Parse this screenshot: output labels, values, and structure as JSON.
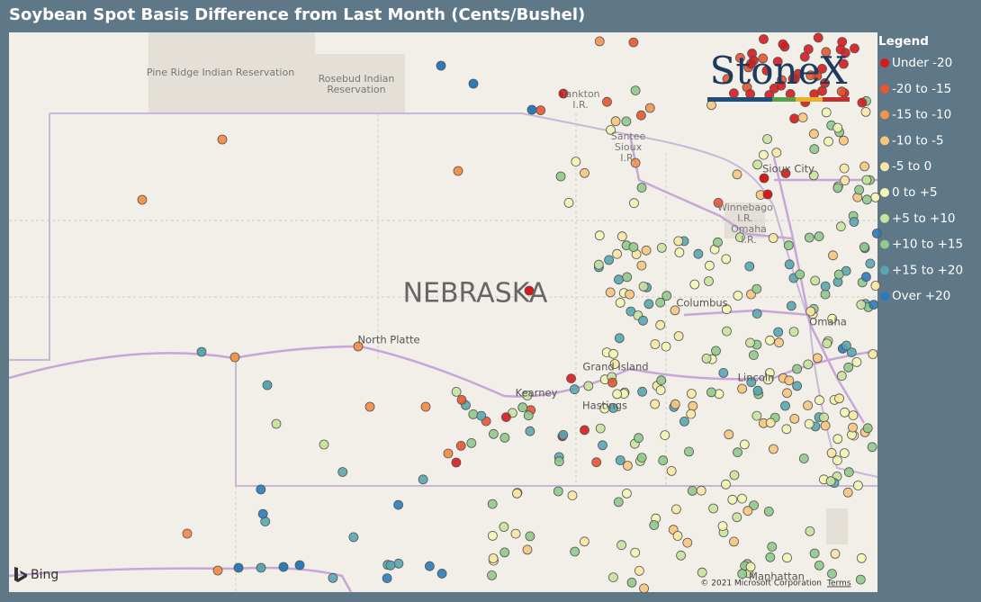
{
  "header": {
    "title": "Soybean Spot Basis Difference from Last Month (Cents/Bushel)"
  },
  "legend": {
    "title": "Legend",
    "items": [
      {
        "label": "Under -20",
        "color": "#d7191c"
      },
      {
        "label": "-20 to -15",
        "color": "#e8552f"
      },
      {
        "label": "-15 to -10",
        "color": "#f29450"
      },
      {
        "label": "-10 to -5",
        "color": "#f7c57c"
      },
      {
        "label": "-5 to 0",
        "color": "#fbe7a3"
      },
      {
        "label": "0 to +5",
        "color": "#f3f5b4"
      },
      {
        "label": "+5 to +10",
        "color": "#c8e39e"
      },
      {
        "label": "+10 to +15",
        "color": "#90c98a"
      },
      {
        "label": "+15 to +20",
        "color": "#58a6b1"
      },
      {
        "label": "Over +20",
        "color": "#2b7bba"
      }
    ]
  },
  "map_labels": {
    "pine_ridge": "Pine Ridge Indian Reservation",
    "rosebud_1": "Rosebud Indian",
    "rosebud_2": "Reservation",
    "yankton_1": "Yankton",
    "yankton_2": "I.R.",
    "santee_1": "Santee",
    "santee_2": "Sioux",
    "santee_3": "I.R.",
    "sioux_city": "Sioux City",
    "winnebago_1": "Winnebago",
    "winnebago_2": "I.R.",
    "omaha_ir_1": "Omaha",
    "omaha_ir_2": "I.R.",
    "state": "NEBRASKA",
    "north_platte": "North Platte",
    "columbus": "Columbus",
    "omaha": "Omaha",
    "grand_island": "Grand Island",
    "kearney": "Kearney",
    "hastings": "Hastings",
    "lincoln": "Lincoln",
    "manhattan": "Manhattan"
  },
  "logo": "StoneX",
  "bing": "Bing",
  "attribution": "© 2021 Microsoft Corporation",
  "terms": "Terms"
}
